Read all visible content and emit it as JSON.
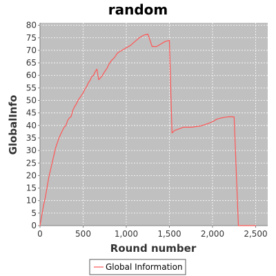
{
  "chart_data": {
    "type": "line",
    "title": "random",
    "xlabel": "Round number",
    "ylabel": "GlobalInfo",
    "xlim": [
      0,
      2640
    ],
    "ylim": [
      0,
      81
    ],
    "x_ticks": [
      0,
      500,
      1000,
      1500,
      2000,
      2500
    ],
    "x_tick_labels": [
      "0",
      "500",
      "1,000",
      "1,500",
      "2,000",
      "2,500"
    ],
    "y_ticks": [
      0,
      5,
      10,
      15,
      20,
      25,
      30,
      35,
      40,
      45,
      50,
      55,
      60,
      65,
      70,
      75,
      80
    ],
    "y_tick_labels": [
      "0",
      "5",
      "10",
      "15",
      "20",
      "25",
      "30",
      "35",
      "40",
      "45",
      "50",
      "55",
      "60",
      "65",
      "70",
      "75",
      "80"
    ],
    "grid": true,
    "legend_position": "bottom",
    "plot_background": "#c0c0c0",
    "series": [
      {
        "name": "Global Information",
        "color": "#ff5555",
        "x": [
          0,
          20,
          40,
          60,
          80,
          100,
          120,
          140,
          160,
          180,
          200,
          220,
          240,
          260,
          280,
          300,
          320,
          340,
          360,
          380,
          400,
          420,
          440,
          460,
          480,
          500,
          520,
          540,
          560,
          580,
          600,
          620,
          640,
          660,
          680,
          700,
          720,
          740,
          760,
          780,
          800,
          830,
          860,
          880,
          900,
          950,
          1000,
          1050,
          1100,
          1150,
          1200,
          1250,
          1300,
          1350,
          1400,
          1450,
          1500,
          1530,
          1560,
          1600,
          1640,
          1660,
          1690,
          1720,
          1760,
          1800,
          1850,
          1900,
          1950,
          2000,
          2050,
          2100,
          2150,
          2200,
          2250,
          2300,
          2350,
          2400,
          2450,
          2500,
          2505
        ],
        "y": [
          0,
          4,
          8,
          11,
          15,
          19,
          22,
          25,
          28,
          31,
          33,
          35,
          36.5,
          38,
          39.3,
          40,
          42,
          43,
          43.5,
          46,
          47.5,
          48.5,
          50,
          51,
          52,
          53,
          54.5,
          55.5,
          57,
          58,
          59.5,
          60,
          61.5,
          62.5,
          58.3,
          59,
          59.8,
          61,
          62,
          63,
          64.5,
          66,
          67,
          68,
          69,
          70,
          71,
          72,
          73.5,
          75,
          76,
          76.5,
          71.5,
          71.5,
          72.5,
          73.5,
          74,
          37,
          38,
          38.5,
          39,
          39.3,
          39.3,
          39.3,
          39.3,
          39.5,
          39.7,
          40.2,
          40.8,
          41.5,
          42.5,
          43,
          43.3,
          43.5,
          43.4,
          0,
          0,
          0,
          0,
          0,
          0
        ]
      }
    ]
  }
}
